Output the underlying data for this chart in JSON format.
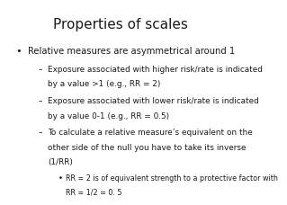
{
  "title": "Properties of scales",
  "title_fontsize": 11,
  "background_color": "#ffffff",
  "text_color": "#1a1a1a",
  "bullet1": "Relative measures are asymmetrical around 1",
  "bullet1_fontsize": 7.2,
  "sub1_line1": "Exposure associated with higher risk/rate is indicated",
  "sub1_line2": "by a value >1 (e.g., RR = 2)",
  "sub2_line1": "Exposure associated with lower risk/rate is indicated",
  "sub2_line2": "by a value 0-1 (e.g., RR = 0.5)",
  "sub3_line1": "To calculate a relative measure’s equivalent on the",
  "sub3_line2": "other side of the null you have to take its inverse",
  "sub3_line3": "(1/RR)",
  "sub4_line1": "RR = 2 is of equivalent strength to a protective factor with",
  "sub4_line2": "RR = 1/2 = 0. 5",
  "sub_fontsize": 6.4,
  "sub4_fontsize": 5.8,
  "dash": "–"
}
